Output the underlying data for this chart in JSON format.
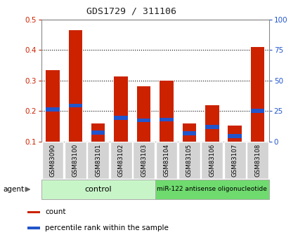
{
  "title": "GDS1729 / 311106",
  "samples": [
    "GSM83090",
    "GSM83100",
    "GSM83101",
    "GSM83102",
    "GSM83103",
    "GSM83104",
    "GSM83105",
    "GSM83106",
    "GSM83107",
    "GSM83108"
  ],
  "count_values": [
    0.334,
    0.465,
    0.16,
    0.313,
    0.28,
    0.3,
    0.16,
    0.218,
    0.152,
    0.41
  ],
  "percentile_values": [
    0.205,
    0.218,
    0.13,
    0.178,
    0.17,
    0.172,
    0.127,
    0.148,
    0.118,
    0.2
  ],
  "ylim": [
    0.1,
    0.5
  ],
  "yticks_left": [
    0.1,
    0.2,
    0.3,
    0.4,
    0.5
  ],
  "yticks_right": [
    0,
    25,
    50,
    75,
    100
  ],
  "bar_color": "#cc2200",
  "percentile_color": "#2255cc",
  "left_tick_color": "#cc2200",
  "right_tick_color": "#2255cc",
  "control_label": "control",
  "treatment_label": "miR-122 antisense oligonucleotide",
  "legend_count": "count",
  "legend_percentile": "percentile rank within the sample",
  "agent_label": "agent",
  "control_bg": "#c8f5c8",
  "treatment_bg": "#6fdb6f",
  "sample_bg": "#d3d3d3",
  "bg_color": "#ffffff"
}
